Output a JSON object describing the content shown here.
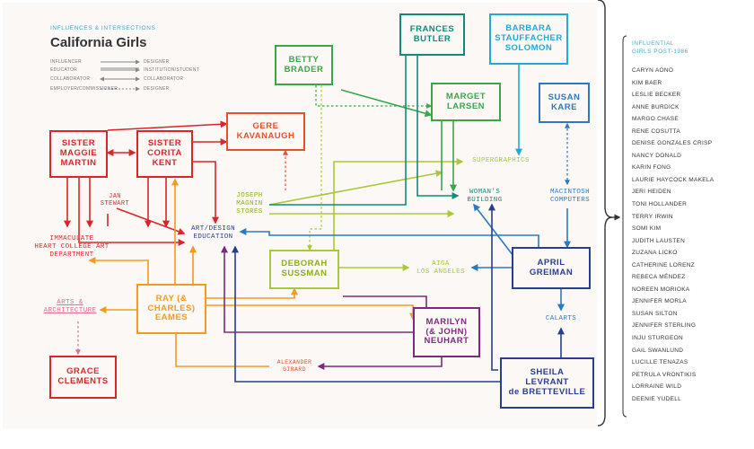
{
  "header": {
    "subtitle": "INFLUENCES & INTERSECTIONS",
    "title": "California Girls"
  },
  "legend": [
    {
      "from": "INFLUENCER",
      "to": "DESIGNER"
    },
    {
      "from": "EDUCATOR",
      "to": "INSTITUTION/STUDENT"
    },
    {
      "from": "COLLABORATOR",
      "to": "COLLABORATOR"
    },
    {
      "from": "EMPLOYER/COMMISSIONER",
      "to": "DESIGNER"
    }
  ],
  "colors": {
    "red": "#d9262b",
    "orange_red": "#e8502b",
    "orange": "#f39a21",
    "yellow_green": "#a9c93a",
    "green": "#39a64a",
    "teal": "#138a78",
    "cyan": "#23a9d6",
    "blue": "#2d78c2",
    "navy": "#2a3d8f",
    "purple": "#7d2a7e",
    "pink": "#e46d8e",
    "gray": "#444444"
  },
  "boxes": {
    "sister_maggie": "SISTER\nMAGGIE\nMARTIN",
    "sister_corita": "SISTER\nCORITA\nKENT",
    "gere": "GERE\nKAVANAUGH",
    "betty": "BETTY\nBRADER",
    "frances": "FRANCES\nBUTLER",
    "barbara": "BARBARA\nSTAUFFACHER\nSOLOMON",
    "marget": "MARGET\nLARSEN",
    "susan": "SUSAN\nKARE",
    "deborah": "DEBORAH\nSUSSMAN",
    "ray": "RAY (&\nCHARLES)\nEAMES",
    "grace": "GRACE\nCLEMENTS",
    "marilyn": "MARILYN\n(& JOHN)\nNEUHART",
    "april": "APRIL\nGREIMAN",
    "sheila": "SHEILA\nLEVRANT\nde BRETTEVILLE"
  },
  "labels": {
    "jan": "JAN\nSTEWART",
    "immaculate": "IMMACULATE\nHEART COLLEGE ART\nDEPARTMENT",
    "art_design": "ART/DESIGN\nEDUCATION",
    "joseph": "JOSEPH\nMAGNIN\nSTORES",
    "supergraphics": "SUPERGRAPHICS",
    "womans": "WOMAN'S\nBUILDING",
    "macintosh": "MACINTOSH\nCOMPUTERS",
    "aiga": "AIGA\nLOS ANGELES",
    "arts": "ARTS &\nARCHITECTURE",
    "calarts": "CALARTS",
    "alexander": "ALEXANDER\nGIRARD"
  },
  "right_panel": {
    "title": "INFLUENTIAL\nGIRLS POST-1986",
    "names": [
      "CARYN AONO",
      "KIM BAER",
      "LESLIE BECKER",
      "ANNE BURDICK",
      "MARGO CHASE",
      "RENE COSUTTA",
      "DENISE GONZALES CRISP",
      "NANCY DONALD",
      "KARIN FONG",
      "LAURIE HAYCOCK MAKELA",
      "JERI HEIDEN",
      "TONI HOLLANDER",
      "TERRY IRWIN",
      "SOMI KIM",
      "JUDITH LAUSTEN",
      "ZUZANA LICKO",
      "CATHERINE LORENZ",
      "REBECA MÉNDEZ",
      "NOREEN MORIOKA",
      "JENNIFER MORLA",
      "SUSAN SILTON",
      "JENNIFER STERLING",
      "INJU STURGEON",
      "GAIL SWANLUND",
      "LUCILLE TENAZAS",
      "PETRULA VRONTIKIS",
      "LORRAINE WILD",
      "DEENIE YUDELL"
    ]
  }
}
